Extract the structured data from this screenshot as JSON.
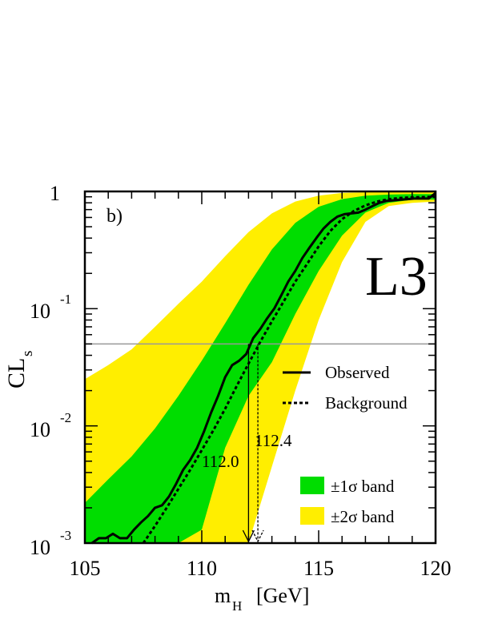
{
  "chart_data": {
    "type": "line",
    "panel_label": "b)",
    "experiment_label": "L3",
    "xlabel": "m",
    "xlabel_sub": "H",
    "xlabel_unit": "[GeV]",
    "ylabel": "CL",
    "ylabel_sub": "s",
    "xlim": [
      105,
      120
    ],
    "ylim": [
      0.001,
      1
    ],
    "yscale": "log",
    "x_ticks": [
      "105",
      "110",
      "115",
      "120"
    ],
    "y_ticks": [
      {
        "base": "1",
        "exp": ""
      },
      {
        "base": "10",
        "exp": "-1"
      },
      {
        "base": "10",
        "exp": "-2"
      },
      {
        "base": "10",
        "exp": "-3"
      }
    ],
    "reference_line": 0.05,
    "colors": {
      "band1": "#00dd00",
      "band2": "#ffee00",
      "line": "#000000",
      "reference": "#999999"
    },
    "legend": {
      "position": "right",
      "observed": "Observed",
      "background": "Background",
      "band1": "±1σ band",
      "band2": "±2σ band"
    },
    "annotations": {
      "observed_limit": "112.0",
      "expected_limit": "112.4"
    },
    "limits": {
      "observed": 112.0,
      "expected": 112.4
    },
    "series": [
      {
        "key": "observed",
        "style": "solid",
        "x": [
          105.3,
          105.6,
          105.9,
          106.2,
          106.5,
          106.8,
          107.1,
          107.4,
          107.7,
          108.0,
          108.3,
          108.6,
          108.9,
          109.2,
          109.5,
          109.8,
          110.1,
          110.4,
          110.7,
          111.0,
          111.3,
          111.6,
          111.9,
          112.2,
          112.5,
          112.8,
          113.1,
          113.4,
          113.7,
          114.0,
          114.3,
          114.6,
          114.9,
          115.2,
          115.5,
          115.8,
          116.1,
          116.4,
          116.7,
          117.0,
          117.3,
          117.6,
          117.9,
          118.2,
          118.5,
          118.8,
          119.1,
          119.4,
          119.7,
          120.0
        ],
        "values": [
          0.00095,
          0.0011,
          0.0011,
          0.0012,
          0.0011,
          0.0011,
          0.0013,
          0.0015,
          0.0017,
          0.002,
          0.0021,
          0.0025,
          0.0032,
          0.0042,
          0.0051,
          0.0065,
          0.009,
          0.013,
          0.018,
          0.026,
          0.033,
          0.036,
          0.041,
          0.056,
          0.067,
          0.083,
          0.1,
          0.13,
          0.17,
          0.21,
          0.27,
          0.33,
          0.4,
          0.48,
          0.55,
          0.61,
          0.64,
          0.65,
          0.66,
          0.7,
          0.75,
          0.8,
          0.83,
          0.84,
          0.85,
          0.86,
          0.87,
          0.87,
          0.87,
          0.97
        ]
      },
      {
        "key": "background",
        "style": "dashed",
        "x": [
          107.5,
          108.0,
          108.5,
          109.0,
          109.5,
          110.0,
          110.5,
          111.0,
          111.5,
          112.0,
          112.5,
          113.0,
          113.5,
          114.0,
          114.5,
          115.0,
          115.5,
          116.0,
          116.5,
          117.0,
          117.5,
          118.0,
          118.5,
          119.0,
          119.5,
          120.0
        ],
        "values": [
          0.001,
          0.0014,
          0.002,
          0.0029,
          0.0042,
          0.0062,
          0.0092,
          0.014,
          0.022,
          0.034,
          0.052,
          0.078,
          0.115,
          0.17,
          0.24,
          0.34,
          0.46,
          0.58,
          0.68,
          0.76,
          0.82,
          0.86,
          0.88,
          0.89,
          0.895,
          0.9
        ]
      }
    ],
    "bands": {
      "x": [
        105.0,
        106.0,
        107.0,
        108.0,
        109.0,
        110.0,
        111.0,
        112.0,
        113.0,
        114.0,
        115.0,
        116.0,
        117.0,
        118.0,
        119.0,
        120.0
      ],
      "minus2": [
        0.001,
        0.001,
        0.001,
        0.001,
        0.001,
        0.001,
        0.001,
        0.001,
        0.0045,
        0.02,
        0.08,
        0.25,
        0.55,
        0.75,
        0.8,
        0.82
      ],
      "minus1": [
        0.001,
        0.001,
        0.001,
        0.001,
        0.001,
        0.0013,
        0.0065,
        0.018,
        0.035,
        0.09,
        0.21,
        0.42,
        0.66,
        0.8,
        0.85,
        0.85
      ],
      "plus1": [
        0.0022,
        0.0035,
        0.0055,
        0.0095,
        0.018,
        0.036,
        0.075,
        0.16,
        0.32,
        0.54,
        0.74,
        0.86,
        0.92,
        0.94,
        0.95,
        0.95
      ],
      "plus2": [
        0.025,
        0.033,
        0.045,
        0.07,
        0.11,
        0.17,
        0.28,
        0.45,
        0.65,
        0.82,
        0.92,
        0.97,
        0.985,
        0.99,
        0.99,
        0.99
      ]
    }
  }
}
